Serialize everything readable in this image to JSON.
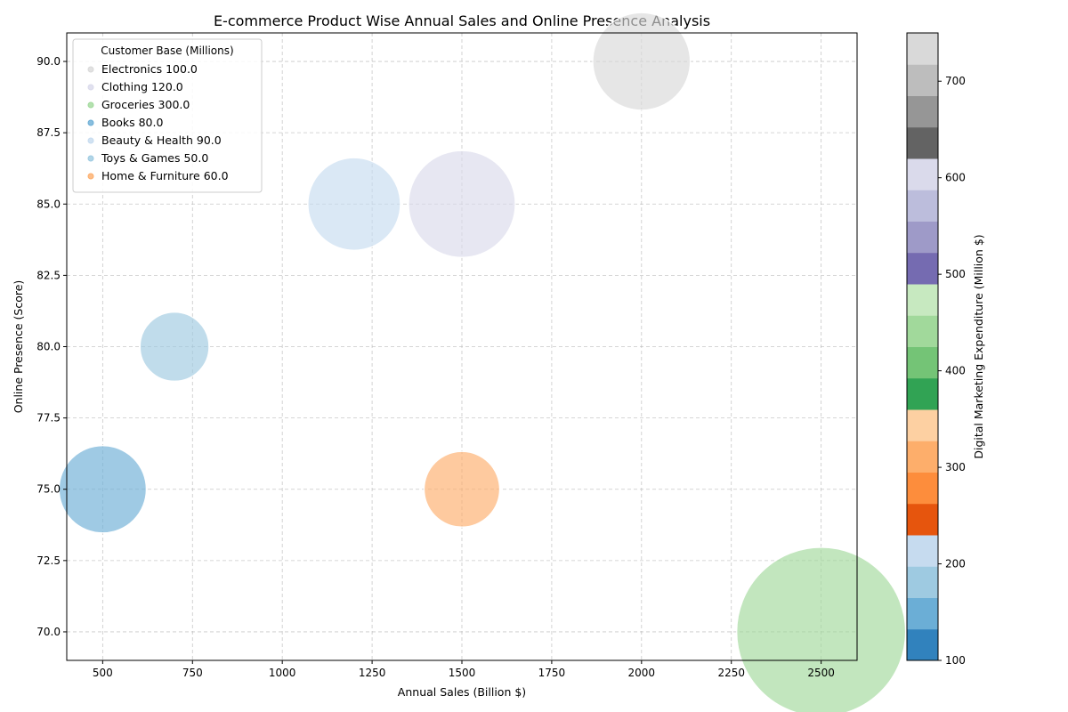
{
  "chart_data": {
    "type": "scatter",
    "title": "E-commerce Product Wise Annual Sales and Online Presence Analysis",
    "xlabel": "Annual Sales (Billion $)",
    "ylabel": "Online Presence (Score)",
    "xlim": [
      400,
      2600
    ],
    "ylim": [
      69,
      91
    ],
    "xticks": [
      500,
      750,
      1000,
      1250,
      1500,
      1750,
      2000,
      2250,
      2500
    ],
    "yticks": [
      70.0,
      72.5,
      75.0,
      77.5,
      80.0,
      82.5,
      85.0,
      87.5,
      90.0
    ],
    "grid": true,
    "legend_title": "Customer Base (Millions)",
    "legend_placement": "upper-left",
    "colorbar_label": "Digital Marketing Expenditure (Million $)",
    "colorbar_ticks": [
      100,
      200,
      300,
      400,
      500,
      600,
      700
    ],
    "colorbar_range": [
      100,
      750
    ],
    "colormap": [
      "#3182bd",
      "#6baed6",
      "#9ecae1",
      "#c6dbef",
      "#e6550d",
      "#fd8d3c",
      "#fdae6b",
      "#fdd0a2",
      "#31a354",
      "#74c476",
      "#a1d99b",
      "#c7e9c0",
      "#756bb1",
      "#9e9ac8",
      "#bcbddc",
      "#dadaeb",
      "#636363",
      "#969696",
      "#bdbdbd",
      "#d9d9d9"
    ],
    "points": [
      {
        "category": "Electronics",
        "sales": 2000,
        "presence": 90,
        "customers": 100.0,
        "legend": "Electronics 100.0",
        "color": "#d9d9d9"
      },
      {
        "category": "Clothing",
        "sales": 1500,
        "presence": 85,
        "customers": 120.0,
        "legend": "Clothing 120.0",
        "color": "#dadaeb"
      },
      {
        "category": "Groceries",
        "sales": 2500,
        "presence": 70,
        "customers": 300.0,
        "legend": "Groceries 300.0",
        "color": "#a1d99b"
      },
      {
        "category": "Books",
        "sales": 500,
        "presence": 75,
        "customers": 80.0,
        "legend": "Books 80.0",
        "color": "#6baed6"
      },
      {
        "category": "Beauty & Health",
        "sales": 1200,
        "presence": 85,
        "customers": 90.0,
        "legend": "Beauty & Health 90.0",
        "color": "#c6dbef"
      },
      {
        "category": "Toys & Games",
        "sales": 700,
        "presence": 80,
        "customers": 50.0,
        "legend": "Toys & Games 50.0",
        "color": "#9ecae1"
      },
      {
        "category": "Home & Furniture",
        "sales": 1500,
        "presence": 75,
        "customers": 60.0,
        "legend": "Home & Furniture 60.0",
        "color": "#fdae6b"
      }
    ]
  }
}
